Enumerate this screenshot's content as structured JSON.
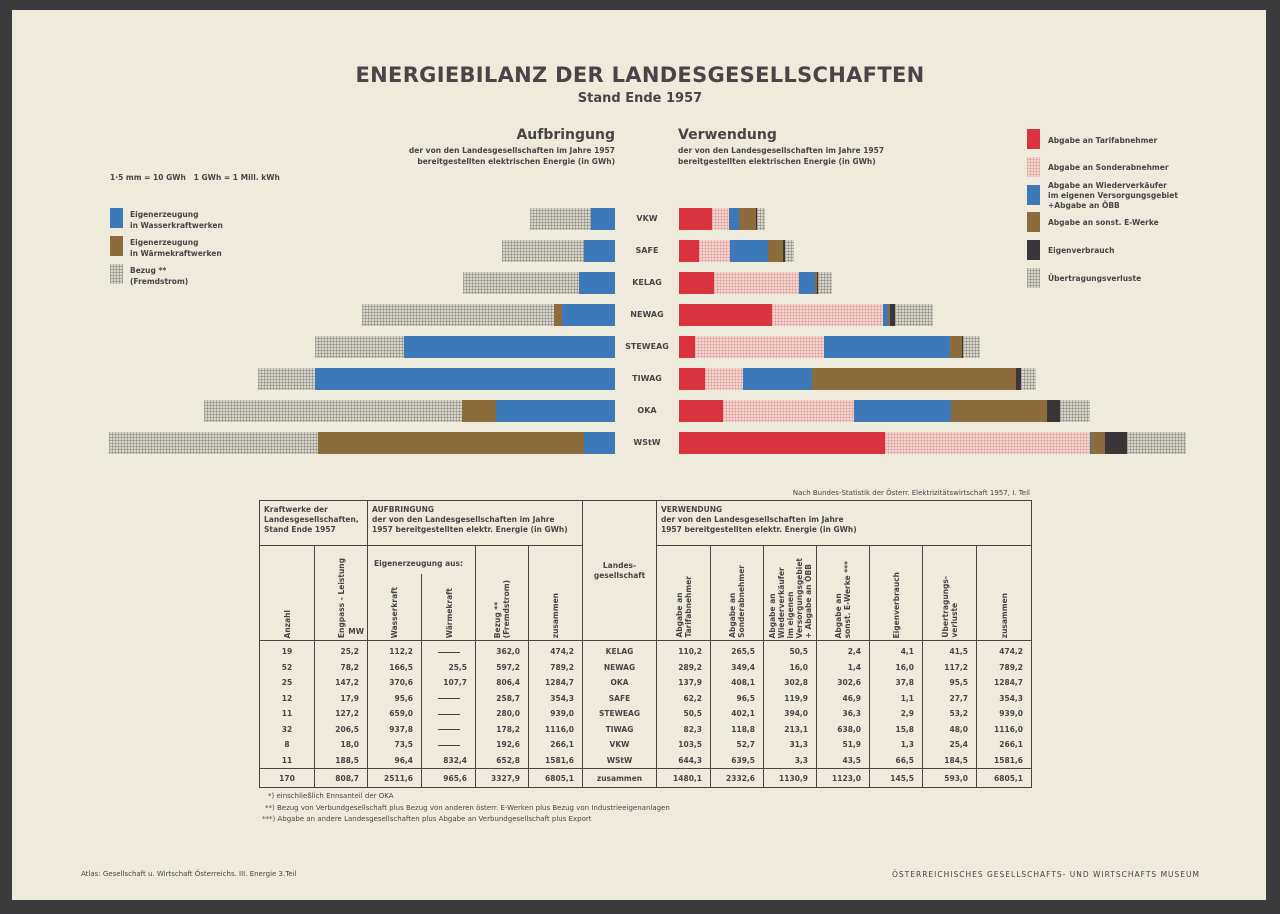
{
  "title": "ENERGIEBILANZ DER LANDESGESELLSCHAFTEN",
  "subtitle": "Stand Ende 1957",
  "aufbringung": {
    "heading": "Aufbringung",
    "sub1": "der von den Landesgesellschaften im Jahre 1957",
    "sub2": "bereitgestellten elektrischen Energie (in GWh)"
  },
  "verwendung": {
    "heading": "Verwendung",
    "sub1": "der von den Landesgesellschaften im Jahre 1957",
    "sub2": "bereitgestellten elektrischen Energie (in GWh)"
  },
  "scale_note": "1·5 mm = 10 GWh   1 GWh = 1 Mill. kWh",
  "colors": {
    "wasser": "#3d78b9",
    "waerme": "#8c6b3d",
    "tarif": "#d8333f",
    "eigenverbrauch": "#3a3539",
    "paper": "#efebdc"
  },
  "legend_left": [
    {
      "key": "wasser",
      "line1": "Eigenerzeugung",
      "line2": "in Wasserkraftwerken"
    },
    {
      "key": "waerme",
      "line1": "Eigenerzeugung",
      "line2": "in Wärmekraftwerken"
    },
    {
      "key": "bezug",
      "line1": "Bezug **",
      "line2": "(Fremdstrom)"
    }
  ],
  "legend_right": [
    {
      "key": "tarif",
      "line1": "Abgabe an Tarifabnehmer",
      "line2": "",
      "line3": ""
    },
    {
      "key": "sonder",
      "line1": "Abgabe an Sonderabnehmer",
      "line2": "",
      "line3": ""
    },
    {
      "key": "wiederverkaeufer",
      "line1": "Abgabe an Wiederverkäufer",
      "line2": "im eigenen Versorgungsgebiet",
      "line3": "+Abgabe an ÖBB"
    },
    {
      "key": "sonstE",
      "line1": "Abgabe an sonst. E-Werke",
      "line2": "",
      "line3": ""
    },
    {
      "key": "eigenverbrauch",
      "line1": "Eigenverbrauch",
      "line2": "",
      "line3": ""
    },
    {
      "key": "verluste",
      "line1": "Übertragungsverluste",
      "line2": "",
      "line3": ""
    }
  ],
  "chart_data": {
    "type": "bar",
    "title": "ENERGIEBILANZ DER LANDESGESELLSCHAFTEN",
    "subtitle": "Stand Ende 1957",
    "orientation": "horizontal-butterfly",
    "unit": "GWh",
    "categories": [
      "VKW",
      "SAFE",
      "KELAG",
      "NEWAG",
      "STEWEAG",
      "TIWAG",
      "OKA",
      "WStW"
    ],
    "left_panel": {
      "title": "Aufbringung",
      "stack_order_from_center": [
        "Eigenerzeugung in Wasserkraftwerken",
        "Eigenerzeugung in Wärmekraftwerken",
        "Bezug (Fremdstrom)"
      ],
      "series": [
        {
          "name": "Eigenerzeugung in Wasserkraftwerken",
          "key": "wasser",
          "values": [
            73.5,
            95.6,
            112.2,
            166.5,
            659.0,
            937.8,
            370.6,
            96.4
          ]
        },
        {
          "name": "Eigenerzeugung in Wärmekraftwerken",
          "key": "waerme",
          "values": [
            0,
            0,
            0,
            25.5,
            0,
            0,
            107.7,
            832.4
          ]
        },
        {
          "name": "Bezug (Fremdstrom)",
          "key": "bezug",
          "values": [
            192.6,
            258.7,
            362.0,
            597.2,
            280.0,
            178.2,
            806.4,
            652.8
          ]
        }
      ]
    },
    "right_panel": {
      "title": "Verwendung",
      "stack_order_from_center": [
        "Abgabe an Tarifabnehmer",
        "Abgabe an Sonderabnehmer",
        "Abgabe an Wiederverkäufer + ÖBB",
        "Abgabe an sonst. E-Werke",
        "Eigenverbrauch",
        "Übertragungsverluste"
      ],
      "series": [
        {
          "name": "Abgabe an Tarifabnehmer",
          "key": "tarif",
          "values": [
            103.5,
            62.2,
            110.2,
            289.2,
            50.5,
            82.3,
            137.9,
            644.3
          ]
        },
        {
          "name": "Abgabe an Sonderabnehmer",
          "key": "sonder",
          "values": [
            52.7,
            96.5,
            265.5,
            349.4,
            402.1,
            118.8,
            408.1,
            639.5
          ]
        },
        {
          "name": "Abgabe an Wiederverkäufer + ÖBB",
          "key": "wiederverkaeufer",
          "values": [
            31.3,
            119.9,
            50.5,
            16.0,
            394.0,
            213.1,
            302.8,
            3.3
          ]
        },
        {
          "name": "Abgabe an sonst. E-Werke",
          "key": "sonstE",
          "values": [
            51.9,
            46.9,
            2.4,
            1.4,
            36.3,
            638.0,
            302.6,
            43.5
          ]
        },
        {
          "name": "Eigenverbrauch",
          "key": "eigenverbrauch",
          "values": [
            1.3,
            1.1,
            4.1,
            16.0,
            2.9,
            15.8,
            37.8,
            66.5
          ]
        },
        {
          "name": "Übertragungsverluste",
          "key": "verluste",
          "values": [
            25.4,
            27.7,
            41.5,
            117.2,
            53.2,
            48.0,
            95.5,
            184.5
          ]
        }
      ]
    },
    "totals": [
      266.1,
      354.3,
      474.2,
      789.2,
      939.0,
      1116.0,
      1284.7,
      1581.6
    ],
    "scale": "1.5 mm = 10 GWh",
    "legend": "left and right side",
    "grid": false
  },
  "source_note": "Nach Bundes-Statistik der Österr. Elektrizitätswirtschaft 1957, I. Teil",
  "table": {
    "group1_header": [
      "Kraftwerke der",
      "Landesgesellschaften,",
      "Stand Ende 1957"
    ],
    "group2_header": [
      "AUFBRINGUNG",
      "der von den Landesgesellschaften im Jahre",
      "1957 bereitgestellten elektr. Energie (in GWh)"
    ],
    "group3_header": [
      "VERWENDUNG",
      "der von den Landesgesellschaften im Jahre",
      "1957 bereitgestellten elektr. Energie (in GWh)"
    ],
    "eigen_header": "Eigenerzeugung aus:",
    "landes_header": [
      "Landes-",
      "gesellschaft"
    ],
    "mw_unit": "MW",
    "columns": {
      "anzahl": "Anzahl",
      "engpass": "Engpass - Leistung",
      "wasser": "Wasserkraft",
      "waerme": "Wärmekraft",
      "bezug": [
        "Bezug **",
        "(Fremdstrom)"
      ],
      "zusammen_a": "zusammen",
      "tarif": [
        "Abgabe an",
        "Tarifabnehmer"
      ],
      "sonder": [
        "Abgabe an",
        "Sonderabnehmer"
      ],
      "wieder": [
        "Abgabe an",
        "Wiederverkäufer",
        "im eigenen",
        "Versorgungsgebiet",
        "+ Abgabe an ÖBB"
      ],
      "sonst": [
        "Abgabe an",
        "sonst. E-Werke ***"
      ],
      "eigenv": "Eigenverbrauch",
      "verluste": [
        "Übertragungs-",
        "verluste"
      ],
      "zusammen_v": "zusammen"
    },
    "rows": [
      [
        "19",
        "25,2",
        "112,2",
        "—",
        "362,0",
        "474,2",
        "KELAG",
        "110,2",
        "265,5",
        "50,5",
        "2,4",
        "4,1",
        "41,5",
        "474,2"
      ],
      [
        "52",
        "78,2",
        "166,5",
        "25,5",
        "597,2",
        "789,2",
        "NEWAG",
        "289,2",
        "349,4",
        "16,0",
        "1,4",
        "16,0",
        "117,2",
        "789,2"
      ],
      [
        "25",
        "147,2",
        "370,6",
        "107,7",
        "806,4",
        "1284,7",
        "OKA",
        "137,9",
        "408,1",
        "302,8",
        "302,6",
        "37,8",
        "95,5",
        "1284,7"
      ],
      [
        "12",
        "17,9",
        "95,6",
        "—",
        "258,7",
        "354,3",
        "SAFE",
        "62,2",
        "96,5",
        "119,9",
        "46,9",
        "1,1",
        "27,7",
        "354,3"
      ],
      [
        "11",
        "127,2",
        "659,0",
        "—",
        "280,0",
        "939,0",
        "STEWEAG",
        "50,5",
        "402,1",
        "394,0",
        "36,3",
        "2,9",
        "53,2",
        "939,0"
      ],
      [
        "32",
        "206,5",
        "937,8",
        "—",
        "178,2",
        "1116,0",
        "TIWAG",
        "82,3",
        "118,8",
        "213,1",
        "638,0",
        "15,8",
        "48,0",
        "1116,0"
      ],
      [
        "8",
        "18,0",
        "73,5",
        "—",
        "192,6",
        "266,1",
        "VKW",
        "103,5",
        "52,7",
        "31,3",
        "51,9",
        "1,3",
        "25,4",
        "266,1"
      ],
      [
        "11",
        "188,5",
        "96,4",
        "832,4",
        "652,8",
        "1581,6",
        "WStW",
        "644,3",
        "639,5",
        "3,3",
        "43,5",
        "66,5",
        "184,5",
        "1581,6"
      ]
    ],
    "total_row": [
      "170",
      "808,7",
      "2511,6",
      "965,6",
      "3327,9",
      "6805,1",
      "zusammen",
      "1480,1",
      "2332,6",
      "1130,9",
      "1123,0",
      "145,5",
      "593,0",
      "6805,1"
    ]
  },
  "footnotes": [
    "*) einschließlich Ennsanteil der OKA",
    "**) Bezug von Verbundgesellschaft plus Bezug von anderen österr. E-Werken plus Bezug von Industrieeigenanlagen",
    "***) Abgabe an andere Landesgesellschaften plus Abgabe an Verbundgesellschaft plus Export"
  ],
  "footer_left": "Atlas: Gesellschaft u. Wirtschaft Österreichs. III. Energie 3.Teil",
  "footer_right": "ÖSTERREICHISCHES GESELLSCHAFTS- UND WIRTSCHAFTS MUSEUM"
}
